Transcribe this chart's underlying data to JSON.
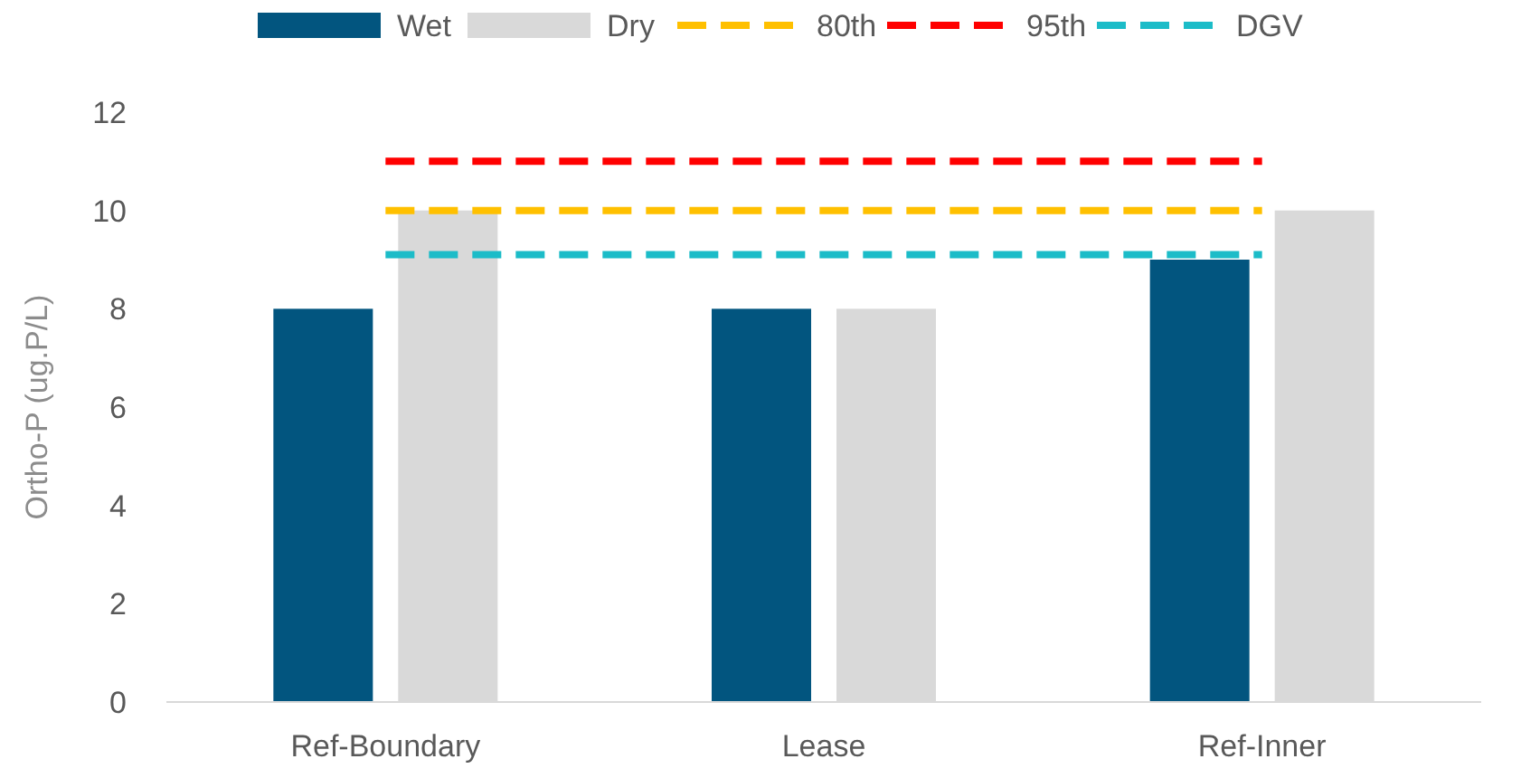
{
  "chart_data": {
    "type": "bar",
    "ylabel": "Ortho-P (ug.P/L)",
    "categories": [
      "Ref-Boundary",
      "Lease",
      "Ref-Inner"
    ],
    "series": [
      {
        "name": "Wet",
        "color": "#02557f",
        "values": [
          8,
          8,
          9
        ]
      },
      {
        "name": "Dry",
        "color": "#d9d9d9",
        "values": [
          10,
          8,
          10
        ]
      },
      {
        "name": "80th",
        "type": "line",
        "color": "#ffc000",
        "line_style": "dashed",
        "values": [
          10,
          10,
          10
        ]
      },
      {
        "name": "95th",
        "type": "line",
        "color": "#ff0000",
        "line_style": "dashed",
        "values": [
          11,
          11,
          11
        ]
      },
      {
        "name": "DGV",
        "type": "line",
        "color": "#1cbcc8",
        "line_style": "dashed",
        "values": [
          9.1,
          9.1,
          9.1
        ]
      }
    ],
    "ylim": [
      0,
      12
    ],
    "yticks": [
      0,
      2,
      4,
      6,
      8,
      10,
      12
    ],
    "grid": false,
    "legend": "top"
  }
}
